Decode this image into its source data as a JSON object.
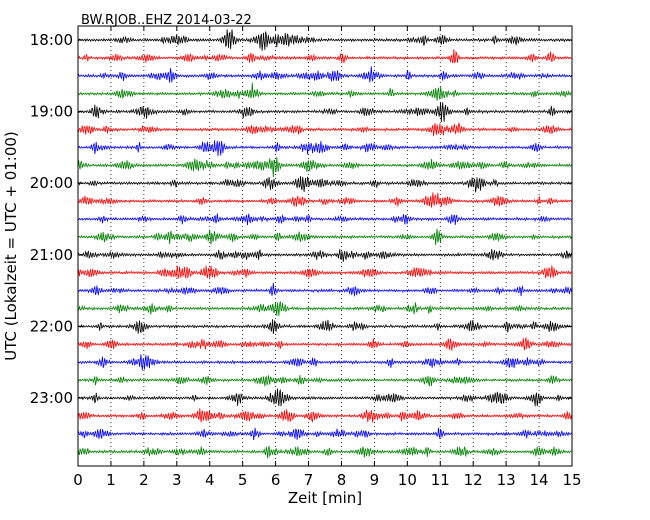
{
  "chart_data": {
    "type": "line",
    "title": "BW.RJOB..EHZ 2014-03-22",
    "xlabel": "Zeit  [min]",
    "ylabel": "UTC (Lokalzeit = UTC + 01:00)",
    "xlim": [
      0,
      15
    ],
    "x_ticks": [
      "0",
      "1",
      "2",
      "3",
      "4",
      "5",
      "6",
      "7",
      "8",
      "9",
      "10",
      "11",
      "12",
      "13",
      "14",
      "15"
    ],
    "y_ticks": [
      "18:00",
      "19:00",
      "20:00",
      "21:00",
      "22:00",
      "23:00"
    ],
    "y_tick_rows": [
      0,
      4,
      8,
      12,
      16,
      20
    ],
    "rows": 24,
    "row_interval_minutes": 15,
    "vertical_grid": "dotted",
    "colors": [
      "#000000",
      "#ff0000",
      "#0000ff",
      "#008000"
    ]
  }
}
